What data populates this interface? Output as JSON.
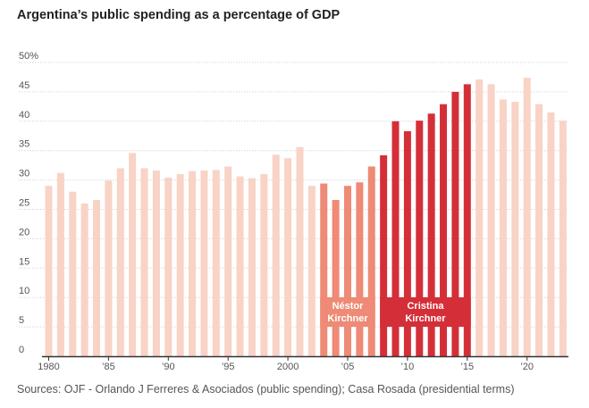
{
  "title": "Argentina’s public spending as a percentage of GDP",
  "source": "Sources: OJF - Orlando J Ferreres & Asociados (public spending); Casa Rosada (presidential terms)",
  "colors": {
    "other": "#f8d3c6",
    "nestor": "#ee8a76",
    "cristina": "#d42f38",
    "grid": "#d9d9d9",
    "axis": "#333333"
  },
  "chart_data": {
    "type": "bar",
    "title": "Argentina’s public spending as a percentage of GDP",
    "xlabel": "",
    "ylabel": "",
    "ylim": [
      0,
      50
    ],
    "grid": true,
    "y_ticks": [
      0,
      5,
      10,
      15,
      20,
      25,
      30,
      35,
      40,
      45,
      50
    ],
    "y_tick_labels": [
      "0",
      "5",
      "10",
      "15",
      "20",
      "25",
      "30",
      "35",
      "40",
      "45",
      "50%"
    ],
    "x_tick_labels": [
      {
        "year": 1980,
        "label": "1980"
      },
      {
        "year": 1985,
        "label": "’85"
      },
      {
        "year": 1990,
        "label": "’90"
      },
      {
        "year": 1995,
        "label": "’95"
      },
      {
        "year": 2000,
        "label": "2000"
      },
      {
        "year": 2005,
        "label": "’05"
      },
      {
        "year": 2010,
        "label": "’10"
      },
      {
        "year": 2015,
        "label": "’15"
      },
      {
        "year": 2020,
        "label": "’20"
      }
    ],
    "years": [
      1980,
      1981,
      1982,
      1983,
      1984,
      1985,
      1986,
      1987,
      1988,
      1989,
      1990,
      1991,
      1992,
      1993,
      1994,
      1995,
      1996,
      1997,
      1998,
      1999,
      2000,
      2001,
      2002,
      2003,
      2004,
      2005,
      2006,
      2007,
      2008,
      2009,
      2010,
      2011,
      2012,
      2013,
      2014,
      2015,
      2016,
      2017,
      2018,
      2019,
      2020,
      2021,
      2022,
      2023
    ],
    "values": [
      29.0,
      31.2,
      28.0,
      26.0,
      26.6,
      29.9,
      32.0,
      34.6,
      32.0,
      31.6,
      30.4,
      31.0,
      31.5,
      31.6,
      31.7,
      32.3,
      30.6,
      30.3,
      31.0,
      34.3,
      33.7,
      35.6,
      29.0,
      29.4,
      26.6,
      29.0,
      29.6,
      32.3,
      34.2,
      40.0,
      38.3,
      40.1,
      41.3,
      42.9,
      45.0,
      46.3,
      47.1,
      46.3,
      43.7,
      43.3,
      47.4,
      42.9,
      41.5,
      40.1
    ],
    "periods": [
      {
        "name": "Néstor Kirchner",
        "label_lines": [
          "Néstor",
          "Kirchner"
        ],
        "start": 2003,
        "end": 2007,
        "color_key": "nestor"
      },
      {
        "name": "Cristina Kirchner",
        "label_lines": [
          "Cristina",
          "Kirchner"
        ],
        "start": 2008,
        "end": 2015,
        "color_key": "cristina"
      }
    ]
  }
}
